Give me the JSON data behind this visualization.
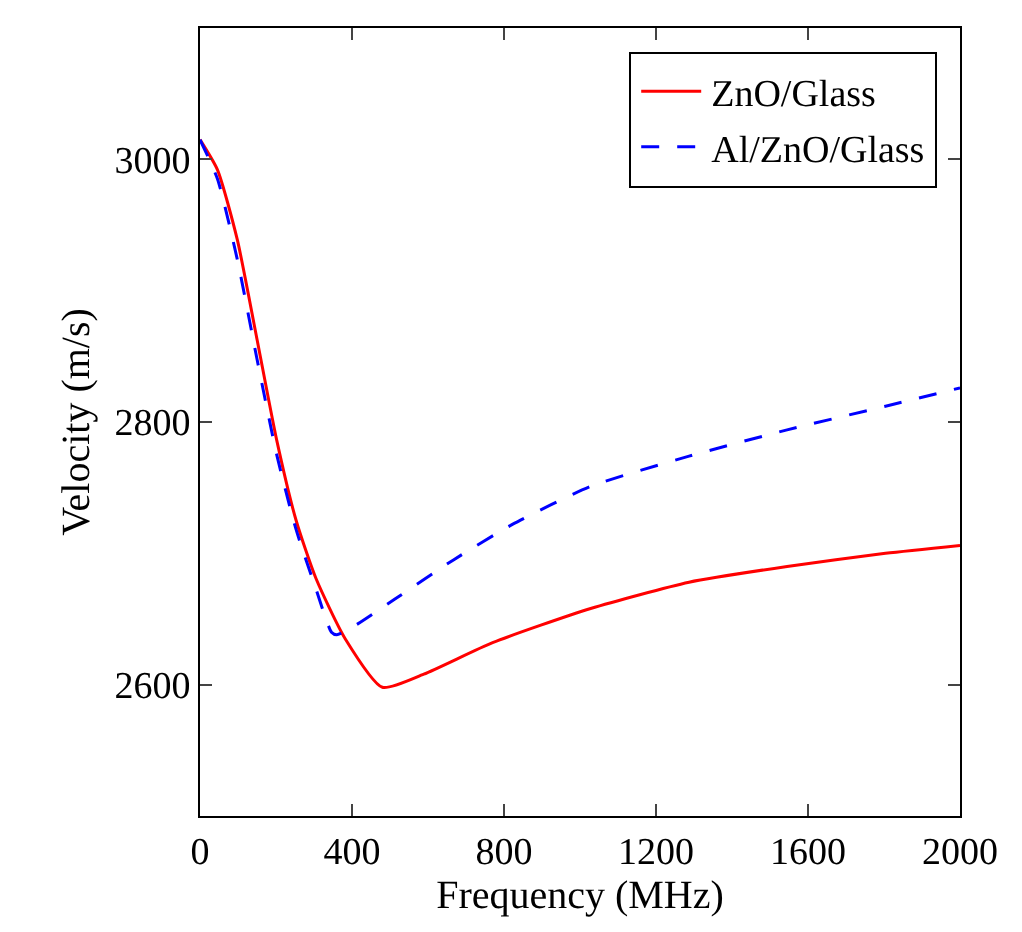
{
  "chart_data": {
    "type": "line",
    "xlabel": "Frequency (MHz)",
    "ylabel": "Velocity (m/s)",
    "xlim": [
      0,
      2000
    ],
    "xticks": [
      0,
      400,
      800,
      1200,
      1600,
      2000
    ],
    "ylim": [
      2500,
      3100
    ],
    "yticks": [
      2600,
      2800,
      3000
    ],
    "legend": "top right",
    "marker": "none",
    "series": [
      {
        "name": "ZnO/Glass",
        "color": "#ff0000",
        "line_style": "solid",
        "x": [
          0,
          46,
          98,
          150,
          202,
          253,
          305,
          382,
          480,
          589,
          770,
          1028,
          1287,
          1545,
          1804,
          2000
        ],
        "values": [
          3015,
          2992,
          2939,
          2863,
          2786,
          2725,
          2681,
          2635,
          2598,
          2608,
          2632,
          2658,
          2678,
          2690,
          2700,
          2706
        ]
      },
      {
        "name": "Al/ZnO/Glass",
        "color": "#0000ff",
        "line_style": "dashed",
        "x": [
          0,
          46,
          98,
          150,
          202,
          253,
          305,
          346,
          360,
          408,
          512,
          667,
          822,
          1028,
          1287,
          1545,
          1804,
          2000
        ],
        "values": [
          3015,
          2985,
          2924,
          2848,
          2775,
          2718,
          2673,
          2640,
          2638,
          2645,
          2665,
          2695,
          2722,
          2751,
          2774,
          2794,
          2812,
          2826
        ]
      }
    ]
  }
}
